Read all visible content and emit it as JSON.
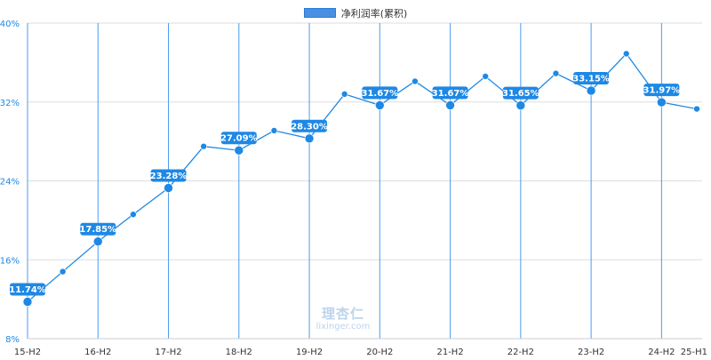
{
  "chart_data": {
    "type": "line",
    "series_name": "净利润率(累积)",
    "color": "#1e88e5",
    "label_bg": "#1e88e5",
    "grid_vertical_color": "#4a9bf0",
    "grid_horizontal_color": "#dddddd",
    "ylim": [
      8,
      40
    ],
    "y_ticks": [
      "8%",
      "16%",
      "24%",
      "32%",
      "40%"
    ],
    "x_ticks": [
      "15-H2",
      "16-H2",
      "17-H2",
      "18-H2",
      "19-H2",
      "20-H2",
      "21-H2",
      "22-H2",
      "23-H2",
      "24-H2",
      "25-H1"
    ],
    "points": [
      {
        "period": "15-H2",
        "value": 11.74,
        "label": "11.74%"
      },
      {
        "period": "16-H1",
        "value": 14.8
      },
      {
        "period": "16-H2",
        "value": 17.85,
        "label": "17.85%"
      },
      {
        "period": "17-H1",
        "value": 20.6
      },
      {
        "period": "17-H2",
        "value": 23.28,
        "label": "23.28%"
      },
      {
        "period": "18-H1",
        "value": 27.5
      },
      {
        "period": "18-H2",
        "value": 27.09,
        "label": "27.09%"
      },
      {
        "period": "19-H1",
        "value": 29.1
      },
      {
        "period": "19-H2",
        "value": 28.3,
        "label": "28.30%"
      },
      {
        "period": "20-H1",
        "value": 32.8
      },
      {
        "period": "20-H2",
        "value": 31.67,
        "label": "31.67%"
      },
      {
        "period": "21-H1",
        "value": 34.1
      },
      {
        "period": "21-H2",
        "value": 31.67,
        "label": "31.67%"
      },
      {
        "period": "22-H1",
        "value": 34.6
      },
      {
        "period": "22-H2",
        "value": 31.65,
        "label": "31.65%"
      },
      {
        "period": "23-H1",
        "value": 34.9
      },
      {
        "period": "23-H2",
        "value": 33.15,
        "label": "33.15%"
      },
      {
        "period": "24-H1",
        "value": 36.9
      },
      {
        "period": "24-H2",
        "value": 31.97,
        "label": "31.97%"
      },
      {
        "period": "25-H1",
        "value": 31.3
      }
    ]
  },
  "watermark": {
    "logo": "理杏仁",
    "url": "lixinger.com"
  }
}
